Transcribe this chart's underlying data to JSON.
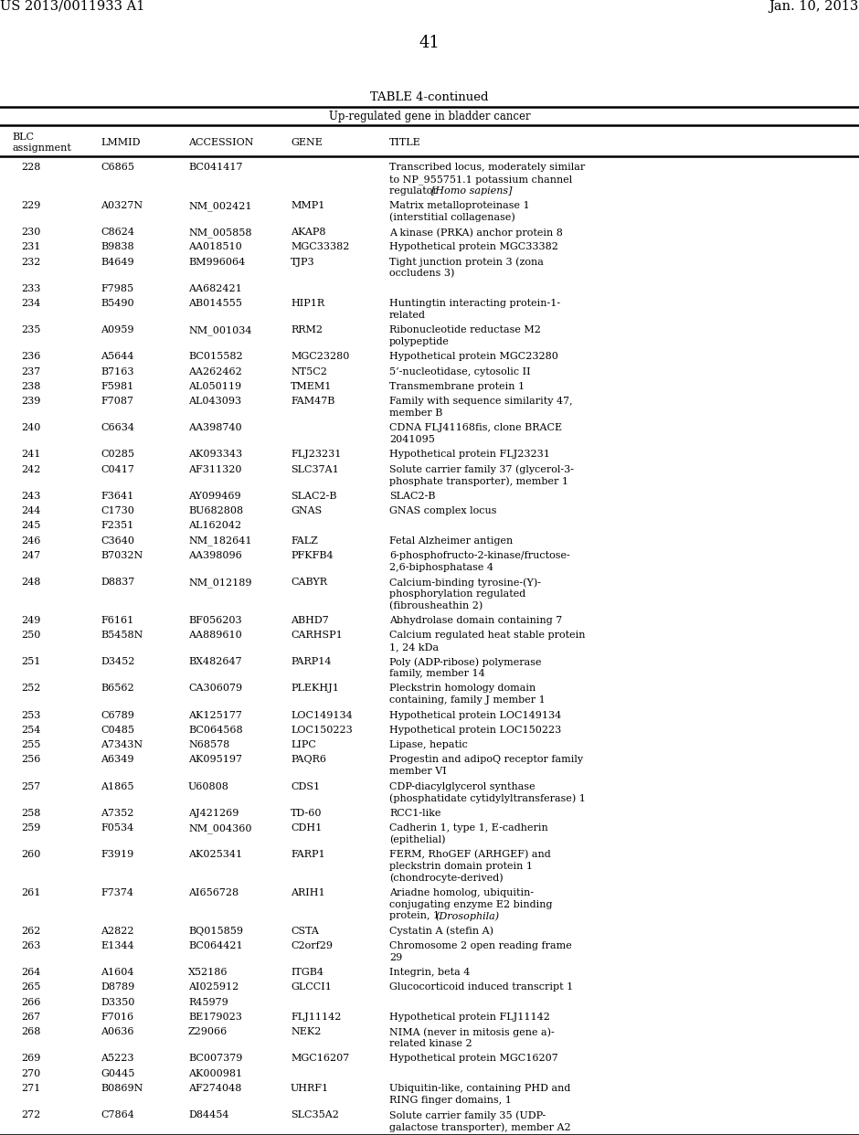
{
  "patent_left": "US 2013/0011933 A1",
  "patent_right": "Jan. 10, 2013",
  "page_number": "41",
  "table_title": "TABLE 4-continued",
  "table_subtitle": "Up-regulated gene in bladder cancer",
  "rows": [
    [
      "228",
      "C6865",
      "BC041417",
      "",
      "Transcribed locus, moderately similar\nto NP_955751.1 potassium channel\nregulator [Homo sapiens]",
      "homo"
    ],
    [
      "229",
      "A0327N",
      "NM_002421",
      "MMP1",
      "Matrix metalloproteinase 1\n(interstitial collagenase)",
      ""
    ],
    [
      "230",
      "C8624",
      "NM_005858",
      "AKAP8",
      "A kinase (PRKA) anchor protein 8",
      ""
    ],
    [
      "231",
      "B9838",
      "AA018510",
      "MGC33382",
      "Hypothetical protein MGC33382",
      ""
    ],
    [
      "232",
      "B4649",
      "BM996064",
      "TJP3",
      "Tight junction protein 3 (zona\noccludens 3)",
      ""
    ],
    [
      "233",
      "F7985",
      "AA682421",
      "",
      "",
      ""
    ],
    [
      "234",
      "B5490",
      "AB014555",
      "HIP1R",
      "Huntingtin interacting protein-1-\nrelated",
      ""
    ],
    [
      "235",
      "A0959",
      "NM_001034",
      "RRM2",
      "Ribonucleotide reductase M2\npolypeptide",
      ""
    ],
    [
      "236",
      "A5644",
      "BC015582",
      "MGC23280",
      "Hypothetical protein MGC23280",
      ""
    ],
    [
      "237",
      "B7163",
      "AA262462",
      "NT5C2",
      "5’-nucleotidase, cytosolic II",
      ""
    ],
    [
      "238",
      "F5981",
      "AL050119",
      "TMEM1",
      "Transmembrane protein 1",
      ""
    ],
    [
      "239",
      "F7087",
      "AL043093",
      "FAM47B",
      "Family with sequence similarity 47,\nmember B",
      ""
    ],
    [
      "240",
      "C6634",
      "AA398740",
      "",
      "CDNA FLJ41168fis, clone BRACE\n2041095",
      ""
    ],
    [
      "241",
      "C0285",
      "AK093343",
      "FLJ23231",
      "Hypothetical protein FLJ23231",
      ""
    ],
    [
      "242",
      "C0417",
      "AF311320",
      "SLC37A1",
      "Solute carrier family 37 (glycerol-3-\nphosphate transporter), member 1",
      ""
    ],
    [
      "243",
      "F3641",
      "AY099469",
      "SLAC2-B",
      "SLAC2-B",
      ""
    ],
    [
      "244",
      "C1730",
      "BU682808",
      "GNAS",
      "GNAS complex locus",
      ""
    ],
    [
      "245",
      "F2351",
      "AL162042",
      "",
      "",
      ""
    ],
    [
      "246",
      "C3640",
      "NM_182641",
      "FALZ",
      "Fetal Alzheimer antigen",
      ""
    ],
    [
      "247",
      "B7032N",
      "AA398096",
      "PFKFB4",
      "6-phosphofructo-2-kinase/fructose-\n2,6-biphosphatase 4",
      ""
    ],
    [
      "248",
      "D8837",
      "NM_012189",
      "CABYR",
      "Calcium-binding tyrosine-(Y)-\nphosphorylation regulated\n(fibrousheathin 2)",
      ""
    ],
    [
      "249",
      "F6161",
      "BF056203",
      "ABHD7",
      "Abhydrolase domain containing 7",
      ""
    ],
    [
      "250",
      "B5458N",
      "AA889610",
      "CARHSP1",
      "Calcium regulated heat stable protein\n1, 24 kDa",
      ""
    ],
    [
      "251",
      "D3452",
      "BX482647",
      "PARP14",
      "Poly (ADP-ribose) polymerase\nfamily, member 14",
      ""
    ],
    [
      "252",
      "B6562",
      "CA306079",
      "PLEKHJ1",
      "Pleckstrin homology domain\ncontaining, family J member 1",
      ""
    ],
    [
      "253",
      "C6789",
      "AK125177",
      "LOC149134",
      "Hypothetical protein LOC149134",
      ""
    ],
    [
      "254",
      "C0485",
      "BC064568",
      "LOC150223",
      "Hypothetical protein LOC150223",
      ""
    ],
    [
      "255",
      "A7343N",
      "N68578",
      "LIPC",
      "Lipase, hepatic",
      ""
    ],
    [
      "256",
      "A6349",
      "AK095197",
      "PAQR6",
      "Progestin and adipoQ receptor family\nmember VI",
      ""
    ],
    [
      "257",
      "A1865",
      "U60808",
      "CDS1",
      "CDP-diacylglycerol synthase\n(phosphatidate cytidylyltransferase) 1",
      ""
    ],
    [
      "258",
      "A7352",
      "AJ421269",
      "TD-60",
      "RCC1-like",
      ""
    ],
    [
      "259",
      "F0534",
      "NM_004360",
      "CDH1",
      "Cadherin 1, type 1, E-cadherin\n(epithelial)",
      ""
    ],
    [
      "260",
      "F3919",
      "AK025341",
      "FARP1",
      "FERM, RhoGEF (ARHGEF) and\npleckstrin domain protein 1\n(chondrocyte-derived)",
      ""
    ],
    [
      "261",
      "F7374",
      "AI656728",
      "ARIH1",
      "Ariadne homolog, ubiquitin-\nconjugating enzyme E2 binding\nprotein, 1 (Drosophila)",
      "drosophila"
    ],
    [
      "262",
      "A2822",
      "BQ015859",
      "CSTA",
      "Cystatin A (stefin A)",
      ""
    ],
    [
      "263",
      "E1344",
      "BC064421",
      "C2orf29",
      "Chromosome 2 open reading frame\n29",
      ""
    ],
    [
      "264",
      "A1604",
      "X52186",
      "ITGB4",
      "Integrin, beta 4",
      ""
    ],
    [
      "265",
      "D8789",
      "AI025912",
      "GLCCI1",
      "Glucocorticoid induced transcript 1",
      ""
    ],
    [
      "266",
      "D3350",
      "R45979",
      "",
      "",
      ""
    ],
    [
      "267",
      "F7016",
      "BE179023",
      "FLJ11142",
      "Hypothetical protein FLJ11142",
      ""
    ],
    [
      "268",
      "A0636",
      "Z29066",
      "NEK2",
      "NIMA (never in mitosis gene a)-\nrelated kinase 2",
      ""
    ],
    [
      "269",
      "A5223",
      "BC007379",
      "MGC16207",
      "Hypothetical protein MGC16207",
      ""
    ],
    [
      "270",
      "G0445",
      "AK000981",
      "",
      "",
      ""
    ],
    [
      "271",
      "B0869N",
      "AF274048",
      "UHRF1",
      "Ubiquitin-like, containing PHD and\nRING finger domains, 1",
      ""
    ],
    [
      "272",
      "C7864",
      "D84454",
      "SLC35A2",
      "Solute carrier family 35 (UDP-\ngalactose transporter), member A2",
      ""
    ]
  ]
}
